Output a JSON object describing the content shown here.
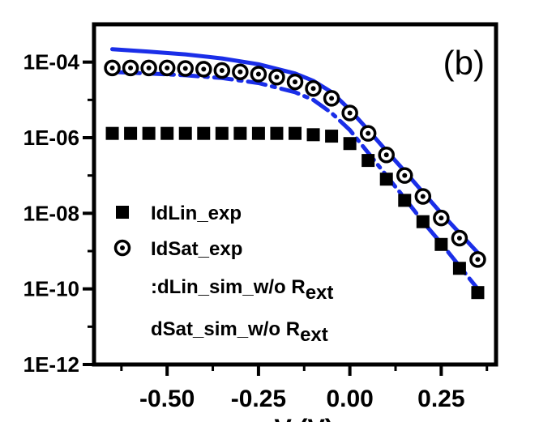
{
  "chart_data": {
    "type": "scatter",
    "panel_label": "(b)",
    "xlabel": "V  (V)",
    "ylabel": "",
    "log_y": true,
    "xlim": [
      -0.7,
      0.4
    ],
    "ylim": [
      1e-12,
      0.001
    ],
    "x_ticks": [
      {
        "value": -0.5,
        "label": "-0.50"
      },
      {
        "value": -0.25,
        "label": "-0.25"
      },
      {
        "value": 0.0,
        "label": "0.00"
      },
      {
        "value": 0.25,
        "label": "0.25"
      }
    ],
    "y_ticks": [
      {
        "value": 0.0001,
        "label": "1E-04"
      },
      {
        "value": 1e-06,
        "label": "1E-06"
      },
      {
        "value": 1e-08,
        "label": "1E-08"
      },
      {
        "value": 1e-10,
        "label": "1E-10"
      },
      {
        "value": 1e-12,
        "label": "1E-12"
      }
    ],
    "legend_placement": "lower-left",
    "series": [
      {
        "name": "IdLin_exp",
        "style": "square-marker",
        "color": "#000000",
        "x": [
          -0.65,
          -0.6,
          -0.55,
          -0.5,
          -0.45,
          -0.4,
          -0.35,
          -0.3,
          -0.25,
          -0.2,
          -0.15,
          -0.1,
          -0.05,
          0.0,
          0.05,
          0.1,
          0.15,
          0.2,
          0.25,
          0.3,
          0.35
        ],
        "y": [
          1.3e-06,
          1.3e-06,
          1.3e-06,
          1.3e-06,
          1.3e-06,
          1.3e-06,
          1.3e-06,
          1.3e-06,
          1.3e-06,
          1.3e-06,
          1.3e-06,
          1.2e-06,
          1.1e-06,
          7e-07,
          2.5e-07,
          8e-08,
          2.2e-08,
          6e-09,
          1.5e-09,
          3.5e-10,
          8e-11
        ]
      },
      {
        "name": "IdSat_exp",
        "style": "circle-dot-marker",
        "color": "#000000",
        "x": [
          -0.65,
          -0.6,
          -0.55,
          -0.5,
          -0.45,
          -0.4,
          -0.35,
          -0.3,
          -0.25,
          -0.2,
          -0.15,
          -0.1,
          -0.05,
          0.0,
          0.05,
          0.1,
          0.15,
          0.2,
          0.25,
          0.3,
          0.35
        ],
        "y": [
          7e-05,
          7e-05,
          7e-05,
          7e-05,
          6.8e-05,
          6.5e-05,
          6e-05,
          5.5e-05,
          4.8e-05,
          4e-05,
          3e-05,
          2e-05,
          1.1e-05,
          4.5e-06,
          1.3e-06,
          3.5e-07,
          1e-07,
          2.8e-08,
          7.5e-09,
          2.2e-09,
          6e-10
        ]
      },
      {
        "name": "IdLin_sim_w/o Rext",
        "style": "dash-dot-line",
        "color": "#1a2ee8",
        "x": [
          -0.65,
          -0.55,
          -0.45,
          -0.35,
          -0.25,
          -0.15,
          -0.1,
          -0.05,
          0.0,
          0.05,
          0.1,
          0.15,
          0.2,
          0.25,
          0.3,
          0.35
        ],
        "y": [
          5.5e-05,
          5e-05,
          4.5e-05,
          3.8e-05,
          2.8e-05,
          1.6e-05,
          1e-05,
          4.5e-06,
          1.6e-06,
          4e-07,
          1e-07,
          2.5e-08,
          6e-09,
          1.6e-09,
          4e-10,
          1e-10
        ]
      },
      {
        "name": "IdSat_sim_w/o Rext",
        "style": "solid-line",
        "color": "#1a2ee8",
        "x": [
          -0.65,
          -0.55,
          -0.45,
          -0.35,
          -0.25,
          -0.15,
          -0.1,
          -0.05,
          0.0,
          0.05,
          0.1,
          0.15,
          0.2,
          0.25,
          0.3,
          0.35
        ],
        "y": [
          0.00022,
          0.00019,
          0.00016,
          0.000125,
          8.8e-05,
          5e-05,
          3.2e-05,
          1.6e-05,
          5.5e-06,
          1.6e-06,
          4.5e-07,
          1.3e-07,
          3.6e-08,
          1e-08,
          3e-09,
          9e-10
        ]
      }
    ],
    "legend": [
      {
        "marker": "square",
        "text": "IdLin_exp",
        "sub": ""
      },
      {
        "marker": "circle-dot",
        "text": "IdSat_exp",
        "sub": ""
      },
      {
        "marker": "none",
        "text": ":dLin_sim_w/o R",
        "sub": "ext"
      },
      {
        "marker": "none",
        "text": "dSat_sim_w/o R",
        "sub": "ext"
      }
    ]
  }
}
